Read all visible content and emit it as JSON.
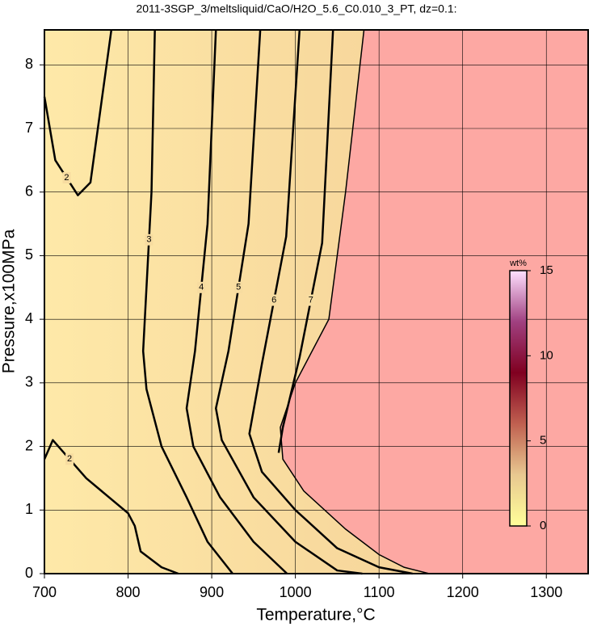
{
  "chart_data": {
    "type": "contour",
    "title": "2011-3SGP_3/meltsliquid/CaO/H2O_5.6_C0.010_3_PT, dz=0.1:",
    "x_label": "Temperature,°C",
    "y_label": "Pressure,x100MPa",
    "xlim": [
      700,
      1350
    ],
    "ylim": [
      0,
      8.55
    ],
    "xticks": [
      700,
      800,
      900,
      1000,
      1100,
      1200,
      1300
    ],
    "yticks": [
      0,
      1,
      2,
      3,
      4,
      5,
      6,
      7,
      8
    ],
    "grid": true,
    "contours": [
      {
        "level": 2,
        "x": [
          700,
          713,
          740,
          755,
          780
        ],
        "y": [
          7.5,
          6.5,
          5.95,
          6.15,
          8.55
        ]
      },
      {
        "level": 2,
        "x": [
          700,
          710,
          750,
          800,
          808,
          815,
          840,
          860
        ],
        "y": [
          1.8,
          2.1,
          1.5,
          0.95,
          0.75,
          0.35,
          0.1,
          0
        ]
      },
      {
        "level": 3,
        "x": [
          832,
          828,
          822,
          818,
          822,
          840,
          870,
          895,
          925
        ],
        "y": [
          8.55,
          6,
          4.5,
          3.5,
          2.9,
          2.0,
          1.2,
          0.5,
          0
        ]
      },
      {
        "level": 4,
        "x": [
          905,
          895,
          880,
          870,
          878,
          910,
          950,
          990
        ],
        "y": [
          8.55,
          5.5,
          3.5,
          2.6,
          2.0,
          1.2,
          0.5,
          0
        ]
      },
      {
        "level": 5,
        "x": [
          958,
          944,
          920,
          905,
          912,
          950,
          1000,
          1050,
          1080
        ],
        "y": [
          8.55,
          5.5,
          3.5,
          2.6,
          2.1,
          1.2,
          0.5,
          0.05,
          0
        ]
      },
      {
        "level": 6,
        "x": [
          1005,
          989,
          960,
          945,
          960,
          1000,
          1050,
          1100,
          1140
        ],
        "y": [
          8.55,
          5.3,
          3.3,
          2.2,
          1.6,
          1.0,
          0.4,
          0.1,
          0
        ]
      },
      {
        "level": 7,
        "x": [
          1045,
          1032,
          1005,
          985,
          980
        ],
        "y": [
          8.55,
          5.2,
          3.4,
          2.3,
          1.9
        ]
      }
    ],
    "saturation_boundary": {
      "x": [
        1082,
        1060,
        1040,
        1000,
        982,
        985,
        1010,
        1060,
        1100,
        1130,
        1160
      ],
      "y": [
        8.55,
        6,
        4,
        3,
        2.3,
        1.8,
        1.3,
        0.7,
        0.3,
        0.1,
        0
      ]
    },
    "colorbar": {
      "label": "wt%",
      "lim": [
        0,
        15
      ],
      "ticks": [
        0,
        5,
        10,
        15
      ],
      "colors": [
        "#ffff99",
        "#e8c890",
        "#c06050",
        "#800020",
        "#a04080",
        "#ffe0ff"
      ]
    }
  }
}
